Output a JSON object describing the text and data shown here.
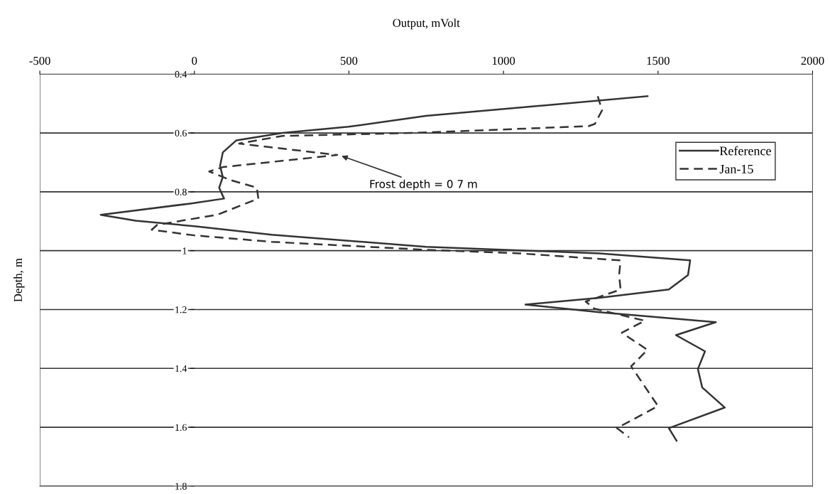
{
  "chart_data": {
    "type": "line",
    "xlabel": "Output, mVolt",
    "ylabel": "Depth, m",
    "xlim": [
      -500,
      2000
    ],
    "xticks": [
      -500,
      0,
      500,
      1000,
      1500,
      2000
    ],
    "ylim": [
      1.8,
      0.4
    ],
    "yticks": [
      0.4,
      0.6,
      0.8,
      1,
      1.2,
      1.4,
      1.6,
      1.8
    ],
    "grid": "y",
    "legend": "top right",
    "marker": "none",
    "annotations": [
      {
        "text": "Frost depth = 0 7 m",
        "x": 470,
        "y": 0.676
      }
    ],
    "series": [
      {
        "name": "Reference",
        "color": "#333333",
        "line_style": "solid",
        "x": [
          1466,
          749,
          499,
          285,
          136,
          92,
          83,
          92,
          80,
          96,
          -14,
          -303,
          -190,
          0,
          250,
          749,
          1310,
          1604,
          1597,
          1535,
          1310,
          1071,
          1310,
          1687,
          1558,
          1652,
          1629,
          1643,
          1716,
          1535,
          1560
        ],
        "values": [
          0.475,
          0.542,
          0.579,
          0.6,
          0.625,
          0.666,
          0.712,
          0.75,
          0.786,
          0.823,
          0.84,
          0.878,
          0.898,
          0.917,
          0.946,
          0.987,
          1.009,
          1.033,
          1.083,
          1.132,
          1.16,
          1.183,
          1.209,
          1.243,
          1.287,
          1.342,
          1.402,
          1.465,
          1.533,
          1.603,
          1.646
        ]
      },
      {
        "name": "Jan-15",
        "color": "#333333",
        "line_style": "dashed",
        "x": [
          1305,
          1319,
          1296,
          1275,
          703,
          285,
          145,
          462,
          92,
          48,
          117,
          202,
          207,
          74,
          -120,
          -138,
          0,
          250,
          749,
          1050,
          1379,
          1374,
          1379,
          1266,
          1294,
          1457,
          1383,
          1466,
          1413,
          1500,
          1367,
          1406
        ],
        "values": [
          0.475,
          0.523,
          0.569,
          0.577,
          0.6,
          0.61,
          0.636,
          0.675,
          0.716,
          0.731,
          0.76,
          0.786,
          0.823,
          0.878,
          0.912,
          0.929,
          0.948,
          0.97,
          0.997,
          1.009,
          1.033,
          1.083,
          1.132,
          1.173,
          1.197,
          1.238,
          1.279,
          1.337,
          1.393,
          1.528,
          1.603,
          1.634
        ]
      }
    ]
  }
}
